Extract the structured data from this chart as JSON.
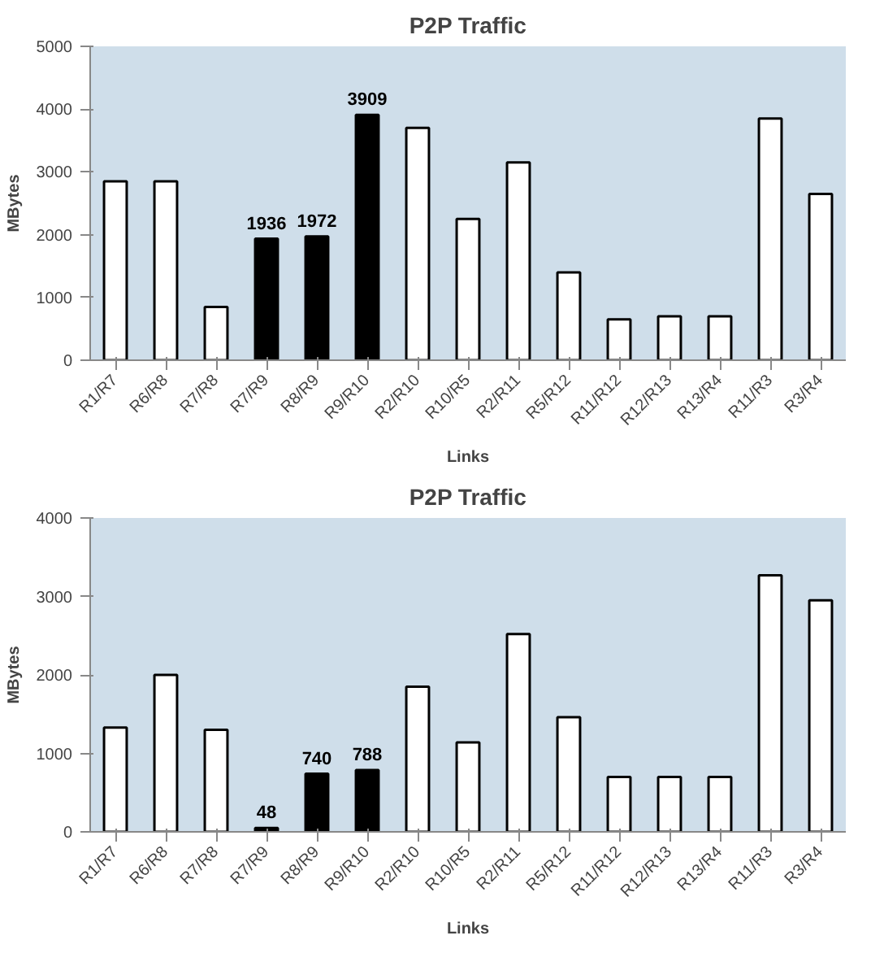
{
  "chart_data": [
    {
      "type": "bar",
      "title": "P2P Traffic",
      "xlabel": "Links",
      "ylabel": "MBytes",
      "categories": [
        "R1/R7",
        "R6/R8",
        "R7/R8",
        "R7/R9",
        "R8/R9",
        "R9/R10",
        "R2/R10",
        "R10/R5",
        "R2/R11",
        "R5/R12",
        "R11/R12",
        "R12/R13",
        "R13/R4",
        "R11/R3",
        "R3/R4"
      ],
      "values": [
        2850,
        2850,
        850,
        1936,
        1972,
        3909,
        3700,
        2250,
        3150,
        1400,
        650,
        700,
        700,
        3850,
        2650
      ],
      "colors": [
        "#ffffff",
        "#ffffff",
        "#ffffff",
        "#000000",
        "#000000",
        "#000000",
        "#ffffff",
        "#ffffff",
        "#ffffff",
        "#ffffff",
        "#ffffff",
        "#ffffff",
        "#ffffff",
        "#ffffff",
        "#ffffff"
      ],
      "value_labels": [
        null,
        null,
        null,
        "1936",
        "1972",
        "3909",
        null,
        null,
        null,
        null,
        null,
        null,
        null,
        null,
        null
      ],
      "ylim": [
        0,
        5000
      ],
      "yticks": [
        0,
        1000,
        2000,
        3000,
        4000,
        5000
      ],
      "grid": false
    },
    {
      "type": "bar",
      "title": "P2P Traffic",
      "xlabel": "Links",
      "ylabel": "MBytes",
      "categories": [
        "R1/R7",
        "R6/R8",
        "R7/R8",
        "R7/R9",
        "R8/R9",
        "R9/R10",
        "R2/R10",
        "R10/R5",
        "R2/R11",
        "R5/R12",
        "R11/R12",
        "R12/R13",
        "R13/R4",
        "R11/R3",
        "R3/R4"
      ],
      "values": [
        1330,
        2000,
        1300,
        48,
        740,
        788,
        1850,
        1140,
        2520,
        1460,
        700,
        700,
        700,
        3270,
        2950
      ],
      "colors": [
        "#ffffff",
        "#ffffff",
        "#ffffff",
        "#000000",
        "#000000",
        "#000000",
        "#ffffff",
        "#ffffff",
        "#ffffff",
        "#ffffff",
        "#ffffff",
        "#ffffff",
        "#ffffff",
        "#ffffff",
        "#ffffff"
      ],
      "value_labels": [
        null,
        null,
        null,
        "48",
        "740",
        "788",
        null,
        null,
        null,
        null,
        null,
        null,
        null,
        null,
        null
      ],
      "ylim": [
        0,
        4000
      ],
      "yticks": [
        0,
        1000,
        2000,
        3000,
        4000
      ],
      "grid": false
    }
  ]
}
